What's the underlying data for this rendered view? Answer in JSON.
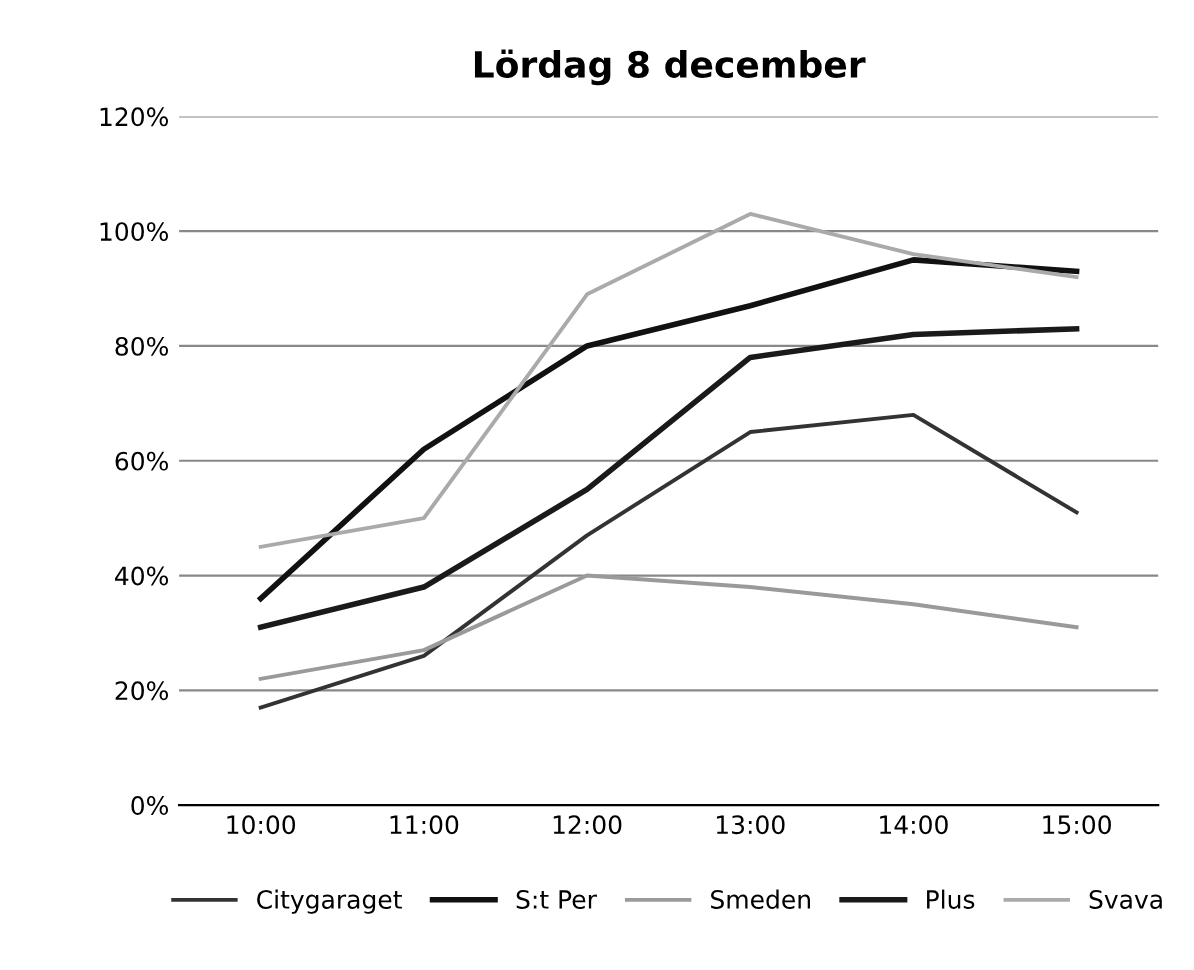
{
  "chart_data": {
    "type": "line",
    "title": "Lördag 8 december",
    "categories": [
      "10:00",
      "11:00",
      "12:00",
      "13:00",
      "14:00",
      "15:00"
    ],
    "series": [
      {
        "name": "Citygaraget",
        "color": "#333333",
        "values": [
          17,
          26,
          47,
          65,
          68,
          51
        ]
      },
      {
        "name": "S:t Per",
        "color": "#111111",
        "values": [
          36,
          62,
          80,
          87,
          95,
          93
        ]
      },
      {
        "name": "Smeden",
        "color": "#9a9a9a",
        "values": [
          22,
          27,
          40,
          38,
          35,
          31
        ]
      },
      {
        "name": "Plus",
        "color": "#1a1a1a",
        "values": [
          31,
          38,
          55,
          78,
          82,
          83
        ]
      },
      {
        "name": "Svava",
        "color": "#aaaaaa",
        "values": [
          45,
          50,
          89,
          103,
          96,
          92
        ]
      }
    ],
    "ylim": [
      0,
      120
    ],
    "yticks": [
      {
        "value": 0,
        "label": "0%"
      },
      {
        "value": 20,
        "label": "20%"
      },
      {
        "value": 40,
        "label": "40%"
      },
      {
        "value": 60,
        "label": "60%"
      },
      {
        "value": 80,
        "label": "80%"
      },
      {
        "value": 100,
        "label": "100%"
      },
      {
        "value": 120,
        "label": "120%"
      }
    ],
    "grid": "y",
    "legend": "bottom",
    "marker": "none",
    "line_style": "solid"
  }
}
